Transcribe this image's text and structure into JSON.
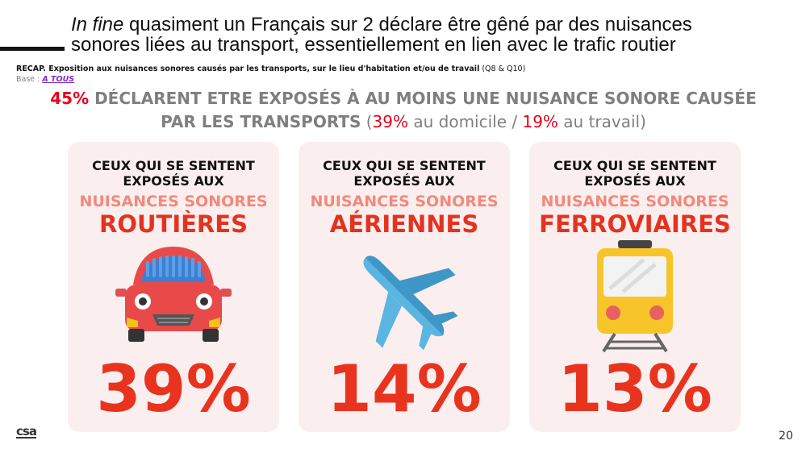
{
  "header": {
    "title_italic": "In fine",
    "title_rest_line1": " quasiment un Français sur 2 déclare être gêné par des nuisances",
    "title_line2": "sonores liées au transport, essentiellement en lien avec le trafic routier",
    "recap_bold": "RECAP. Exposition aux nuisances sonores causés par les transports, sur le lieu d'habitation et/ou de travail",
    "recap_ref": " (Q8 & Q10)",
    "base_label": "Base : ",
    "base_link": "A TOUS"
  },
  "headline": {
    "pct_total": "45%",
    "text_line1": " DÉCLARENT ETRE EXPOSÉS À AU MOINS UNE NUISANCE SONORE CAUSÉE",
    "text_line2": "PAR LES TRANSPORTS",
    "open_paren": " (",
    "pct_home": "39%",
    "home_text": " au domicile / ",
    "pct_work": "19%",
    "work_text": " au travail)"
  },
  "cards": [
    {
      "lead1": "CEUX QUI SE SENTENT",
      "lead2": "EXPOSÉS AUX",
      "sub": "NUISANCES SONORES",
      "kind": "ROUTIÈRES",
      "icon": "car-icon",
      "value": "39%"
    },
    {
      "lead1": "CEUX QUI SE SENTENT",
      "lead2": "EXPOSÉS AUX",
      "sub": "NUISANCES SONORES",
      "kind": "AÉRIENNES",
      "icon": "airplane-icon",
      "value": "14%"
    },
    {
      "lead1": "CEUX QUI SE SENTENT",
      "lead2": "EXPOSÉS AUX",
      "sub": "NUISANCES SONORES",
      "kind": "FERROVIAIRES",
      "icon": "train-icon",
      "value": "13%"
    }
  ],
  "footer": {
    "logo": "csa",
    "page_number": "20"
  },
  "colors": {
    "accent_red": "#e8341f",
    "card_bg": "#fbeeee",
    "soft_red": "#f08a7c",
    "grey_text": "#7f7f7f"
  }
}
